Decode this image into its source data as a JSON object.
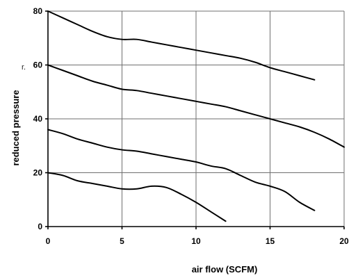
{
  "chart_data": {
    "type": "line",
    "title": "",
    "xlabel": "air flow (SCFM)",
    "ylabel": "reduced pressure",
    "xlim": [
      0,
      20
    ],
    "ylim": [
      0,
      80
    ],
    "x_ticks": [
      "0",
      "5",
      "10",
      "15",
      "20"
    ],
    "y_ticks": [
      "0",
      "20",
      "40",
      "60",
      "80"
    ],
    "grid": true,
    "legend": "none",
    "stray_text": "r.",
    "series": [
      {
        "x": [
          0,
          1,
          2,
          3,
          4,
          5,
          6,
          7,
          8,
          9,
          10,
          11,
          12,
          13,
          14,
          15,
          16,
          17,
          18
        ],
        "y": [
          80,
          77.5,
          75,
          72.5,
          70.5,
          69.5,
          69.5,
          68.5,
          67.5,
          66.5,
          65.5,
          64.5,
          63.5,
          62.5,
          61,
          59,
          57.5,
          56,
          54.5
        ]
      },
      {
        "x": [
          0,
          1,
          2,
          3,
          4,
          5,
          6,
          7,
          8,
          9,
          10,
          11,
          12,
          13,
          14,
          15,
          16,
          17,
          18,
          19,
          20
        ],
        "y": [
          60,
          58,
          56,
          54,
          52.5,
          51,
          50.5,
          49.5,
          48.5,
          47.5,
          46.5,
          45.5,
          44.5,
          43,
          41.5,
          40,
          38.5,
          37,
          35,
          32.5,
          29.5
        ]
      },
      {
        "x": [
          0,
          1,
          2,
          3,
          4,
          5,
          6,
          7,
          8,
          9,
          10,
          11,
          12,
          13,
          14,
          15,
          16,
          17,
          18
        ],
        "y": [
          36,
          34.5,
          32.5,
          31,
          29.5,
          28.5,
          28,
          27,
          26,
          25,
          24,
          22.5,
          21.5,
          19,
          16.5,
          15,
          13,
          9,
          6
        ]
      },
      {
        "x": [
          0,
          1,
          2,
          3,
          4,
          5,
          6,
          7,
          8,
          9,
          10,
          11,
          12
        ],
        "y": [
          20,
          19,
          17,
          16,
          15,
          14,
          14,
          15,
          14.5,
          12,
          9,
          5.5,
          2
        ]
      }
    ]
  }
}
